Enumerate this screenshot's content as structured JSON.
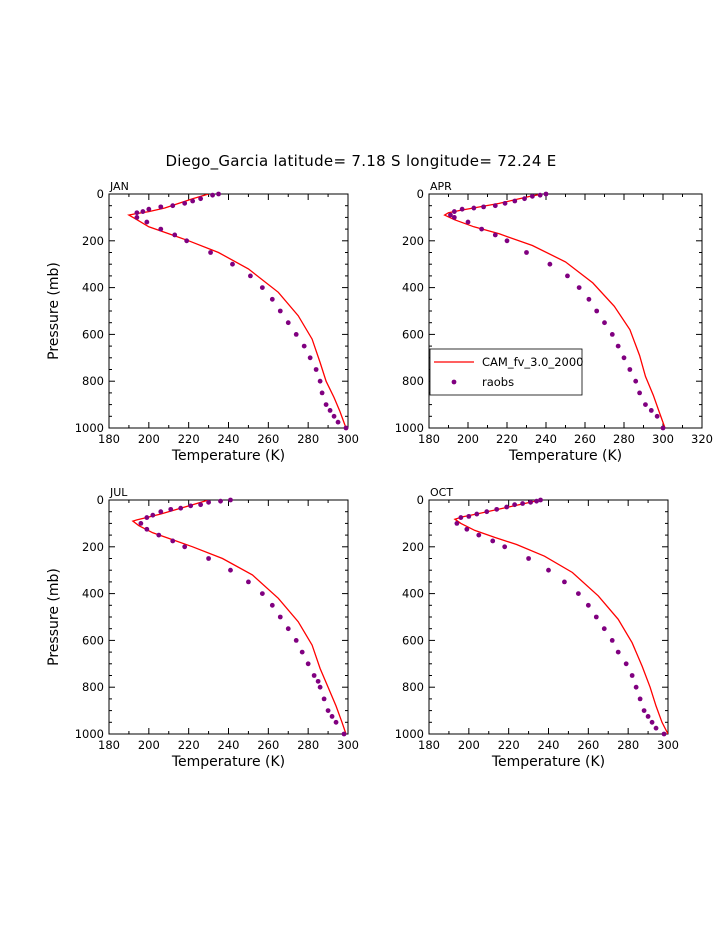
{
  "title": "Diego_Garcia  latitude= 7.18 S longitude= 72.24 E",
  "colors": {
    "model": "#ff0000",
    "obs": "#800080"
  },
  "legend": {
    "model_label": "CAM_fv_3.0_2000",
    "obs_label": "raobs",
    "panel": 1
  },
  "chart_data": [
    {
      "type": "line",
      "label": "JAN",
      "xlabel": "Temperature (K)",
      "ylabel": "Pressure (mb)",
      "xlim": [
        180,
        300
      ],
      "ylim": [
        0,
        1000
      ],
      "y_inverted": true,
      "xticks": [
        "180",
        "200",
        "220",
        "240",
        "260",
        "280",
        "300"
      ],
      "yticks": [
        "0",
        "200",
        "400",
        "600",
        "800",
        "1000"
      ],
      "series": [
        {
          "name": "CAM_fv_3.0_2000",
          "x": [
            230,
            222,
            215,
            208,
            200,
            193,
            190,
            194,
            200,
            210,
            220,
            235,
            250,
            265,
            275,
            282,
            286,
            289,
            293,
            296,
            299
          ],
          "y": [
            0,
            20,
            40,
            60,
            75,
            85,
            90,
            110,
            140,
            170,
            200,
            250,
            320,
            420,
            520,
            620,
            720,
            800,
            870,
            930,
            1000
          ]
        },
        {
          "name": "raobs",
          "x": [
            235,
            232,
            226,
            222,
            218,
            212,
            206,
            200,
            197,
            194,
            194,
            199,
            206,
            213,
            219,
            231,
            242,
            251,
            257,
            262,
            266,
            270,
            274,
            278,
            281,
            284,
            286,
            287,
            289,
            291,
            293,
            295,
            299
          ],
          "y": [
            0,
            5,
            20,
            30,
            40,
            50,
            55,
            65,
            75,
            80,
            100,
            120,
            150,
            175,
            200,
            250,
            300,
            350,
            400,
            450,
            500,
            550,
            600,
            650,
            700,
            750,
            800,
            850,
            900,
            925,
            950,
            975,
            1000
          ]
        }
      ]
    },
    {
      "type": "line",
      "label": "APR",
      "xlabel": "Temperature (K)",
      "ylabel": "",
      "xlim": [
        180,
        320
      ],
      "ylim": [
        0,
        1000
      ],
      "y_inverted": true,
      "xticks": [
        "180",
        "200",
        "220",
        "240",
        "260",
        "280",
        "300",
        "320"
      ],
      "yticks": [
        "0",
        "200",
        "400",
        "600",
        "800",
        "1000"
      ],
      "series": [
        {
          "name": "CAM_fv_3.0_2000",
          "x": [
            238,
            232,
            224,
            216,
            206,
            196,
            190,
            188,
            193,
            203,
            216,
            233,
            250,
            264,
            275,
            283,
            288,
            291,
            295,
            298,
            301
          ],
          "y": [
            0,
            10,
            25,
            40,
            55,
            70,
            80,
            90,
            110,
            140,
            170,
            220,
            290,
            380,
            480,
            580,
            690,
            780,
            860,
            930,
            1000
          ]
        },
        {
          "name": "raobs",
          "x": [
            240,
            237,
            233,
            229,
            224,
            219,
            214,
            208,
            203,
            197,
            193,
            191,
            193,
            200,
            207,
            214,
            220,
            230,
            242,
            251,
            257,
            262,
            266,
            270,
            274,
            277,
            280,
            283,
            286,
            288,
            291,
            294,
            297,
            300
          ],
          "y": [
            0,
            5,
            10,
            20,
            30,
            40,
            50,
            55,
            60,
            65,
            75,
            90,
            100,
            120,
            150,
            175,
            200,
            250,
            300,
            350,
            400,
            450,
            500,
            550,
            600,
            650,
            700,
            750,
            800,
            850,
            900,
            925,
            950,
            1000
          ]
        }
      ]
    },
    {
      "type": "line",
      "label": "JUL",
      "xlabel": "Temperature (K)",
      "ylabel": "Pressure (mb)",
      "xlim": [
        180,
        300
      ],
      "ylim": [
        0,
        1000
      ],
      "y_inverted": true,
      "xticks": [
        "180",
        "200",
        "220",
        "240",
        "260",
        "280",
        "300"
      ],
      "yticks": [
        "0",
        "200",
        "400",
        "600",
        "800",
        "1000"
      ],
      "series": [
        {
          "name": "CAM_fv_3.0_2000",
          "x": [
            230,
            222,
            214,
            206,
            199,
            194,
            192,
            195,
            202,
            212,
            222,
            237,
            252,
            265,
            275,
            282,
            286,
            290,
            294,
            297,
            299
          ],
          "y": [
            0,
            20,
            40,
            60,
            75,
            85,
            90,
            110,
            140,
            170,
            200,
            250,
            320,
            420,
            520,
            620,
            720,
            800,
            880,
            950,
            1000
          ]
        },
        {
          "name": "raobs",
          "x": [
            241,
            236,
            230,
            226,
            221,
            216,
            211,
            206,
            202,
            199,
            196,
            199,
            205,
            212,
            218,
            230,
            241,
            250,
            257,
            262,
            266,
            270,
            274,
            277,
            280,
            283,
            285,
            286,
            288,
            290,
            292,
            294,
            298
          ],
          "y": [
            0,
            5,
            10,
            20,
            25,
            35,
            40,
            50,
            65,
            75,
            100,
            125,
            150,
            175,
            200,
            250,
            300,
            350,
            400,
            450,
            500,
            550,
            600,
            650,
            700,
            750,
            775,
            800,
            850,
            900,
            925,
            950,
            1000
          ]
        }
      ]
    },
    {
      "type": "line",
      "label": "OCT",
      "xlabel": "Temperature (K)",
      "ylabel": "",
      "xlim": [
        180,
        300
      ],
      "ylim": [
        0,
        1000
      ],
      "y_inverted": true,
      "xticks": [
        "180",
        "200",
        "220",
        "240",
        "260",
        "280",
        "300"
      ],
      "yticks": [
        "0",
        "200",
        "400",
        "600",
        "800",
        "1000"
      ],
      "series": [
        {
          "name": "CAM_fv_3.0_2000",
          "x": [
            236,
            228,
            220,
            212,
            204,
            197,
            193,
            196,
            203,
            213,
            224,
            238,
            252,
            265,
            275,
            282,
            287,
            291,
            294,
            297,
            300
          ],
          "y": [
            0,
            15,
            30,
            45,
            60,
            72,
            82,
            100,
            130,
            160,
            190,
            240,
            310,
            410,
            510,
            610,
            710,
            800,
            880,
            950,
            1000
          ]
        },
        {
          "name": "raobs",
          "x": [
            236,
            234,
            231,
            227,
            223,
            219,
            214,
            209,
            204,
            200,
            196,
            194,
            199,
            205,
            212,
            218,
            230,
            240,
            248,
            255,
            260,
            264,
            268,
            272,
            275,
            279,
            282,
            284,
            286,
            288,
            290,
            292,
            294,
            298
          ],
          "y": [
            0,
            5,
            10,
            15,
            20,
            30,
            40,
            50,
            60,
            70,
            75,
            100,
            125,
            150,
            175,
            200,
            250,
            300,
            350,
            400,
            450,
            500,
            550,
            600,
            650,
            700,
            750,
            800,
            850,
            900,
            925,
            950,
            975,
            1000
          ]
        }
      ]
    }
  ]
}
